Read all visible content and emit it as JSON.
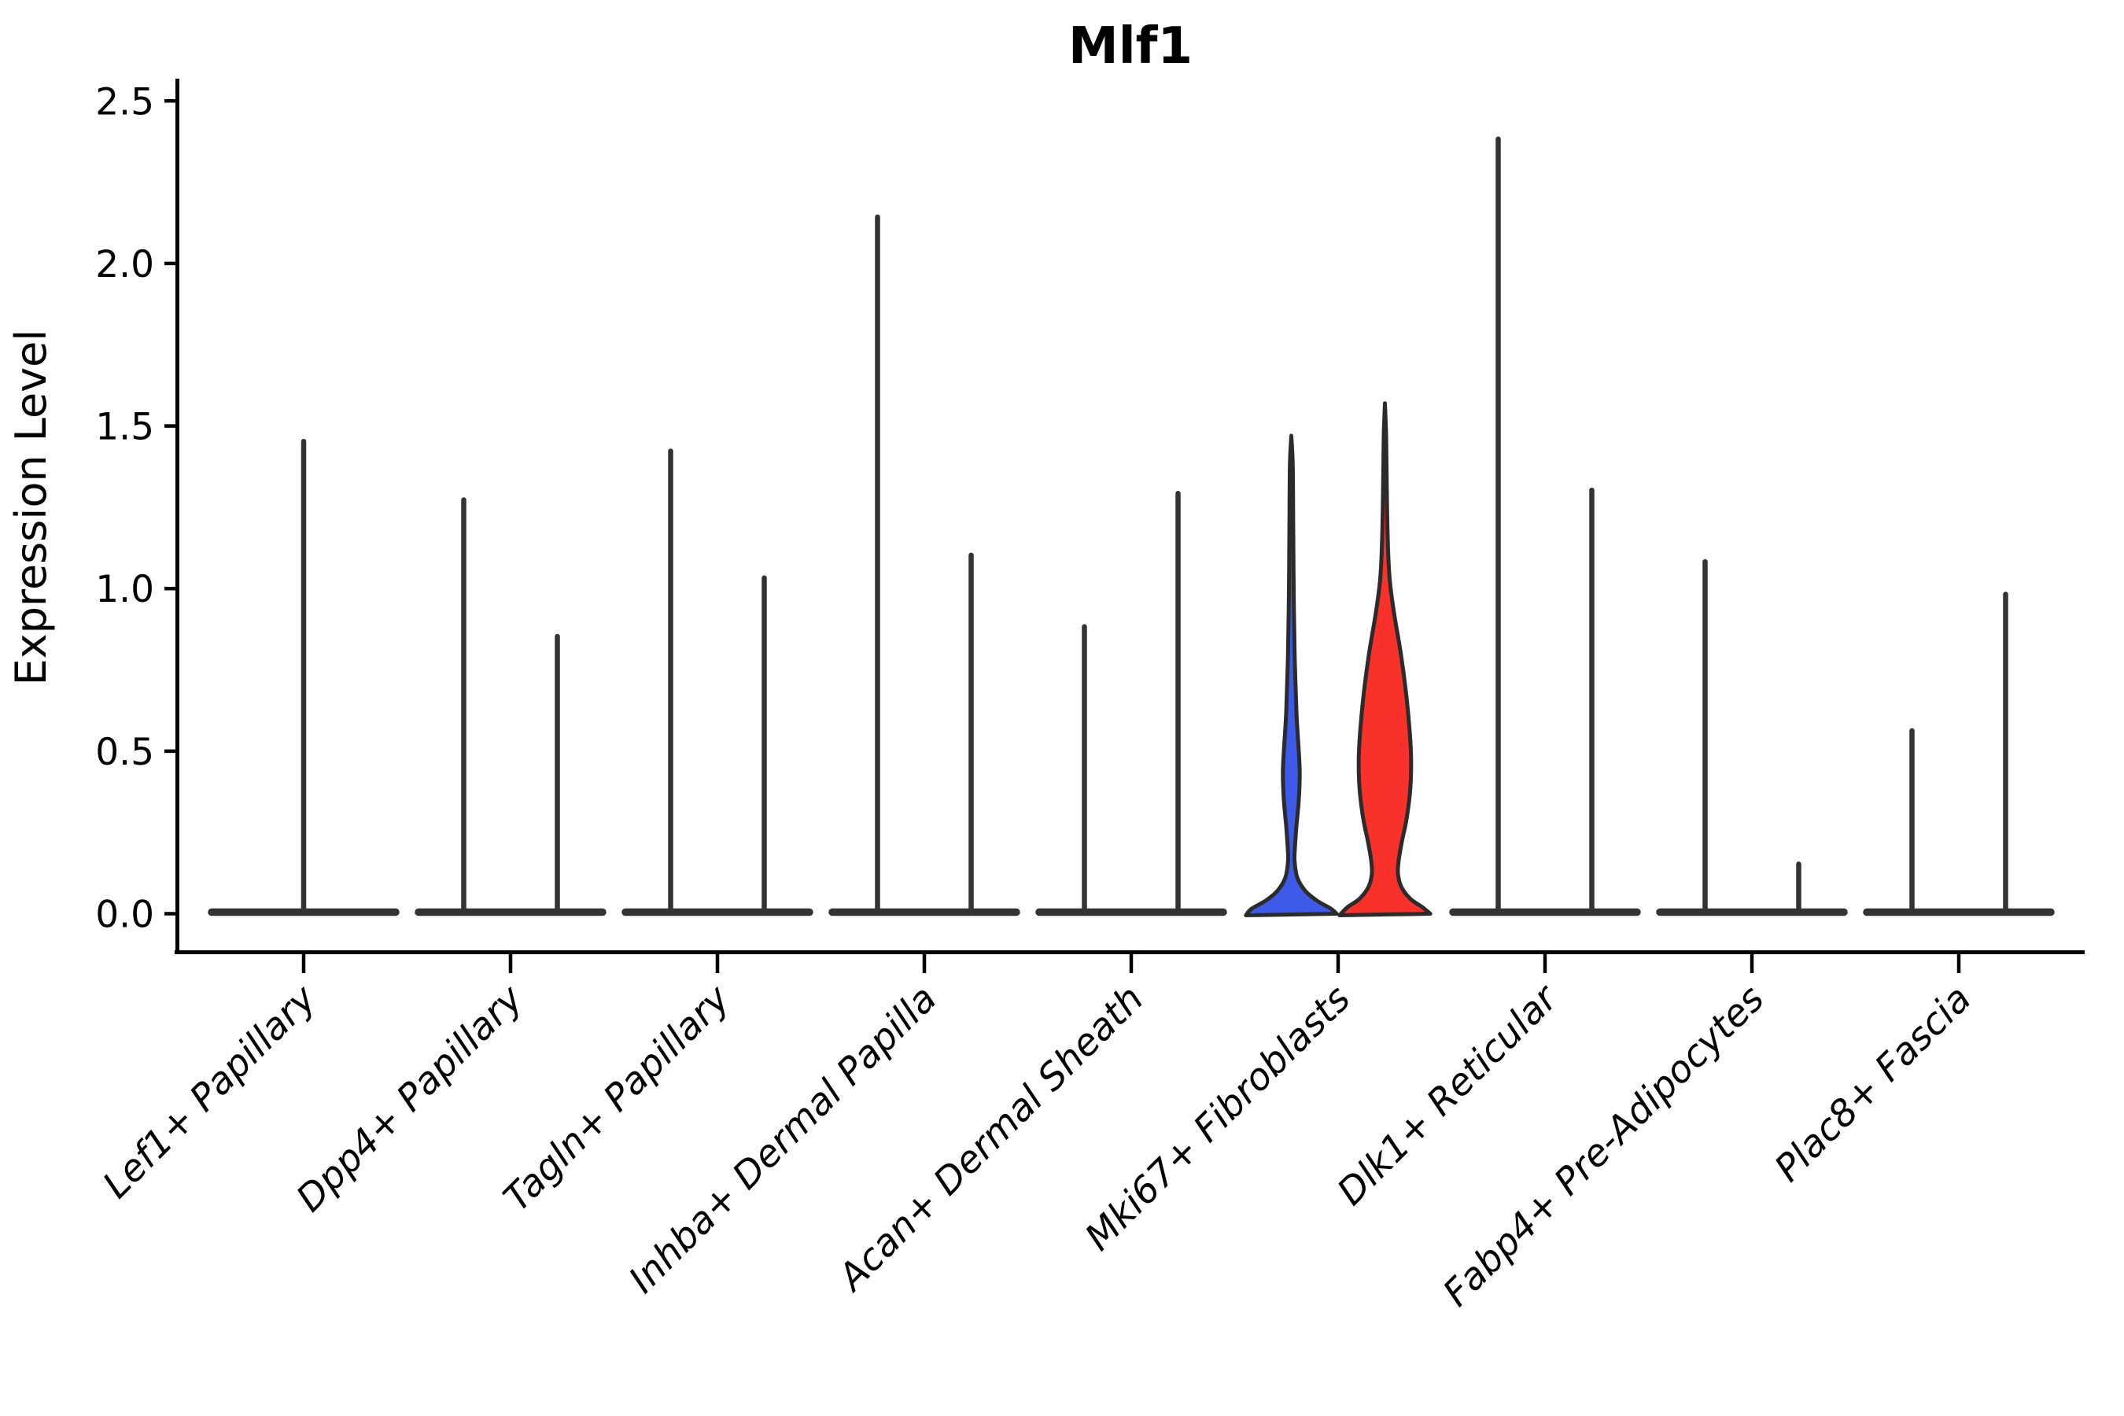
{
  "title": "Mlf1",
  "chart_data": {
    "type": "violin",
    "title": "Mlf1",
    "xlabel": "",
    "ylabel": "Expression Level",
    "yticks": [
      0.0,
      0.5,
      1.0,
      1.5,
      2.0,
      2.5
    ],
    "ylim": [
      -0.12,
      2.57
    ],
    "grid": false,
    "legend": null,
    "xtick_rotation_deg": 45,
    "xtick_italic": true,
    "colors": {
      "violin_line": "#333333",
      "axis": "#000000",
      "blue_fill": "#3D5BE8",
      "red_fill": "#F8312A",
      "violin_outline": "#2B2B2B"
    },
    "categories": [
      {
        "label": "Lef1+ Papillary",
        "violins": [
          {
            "position": "center",
            "max": 1.46,
            "style": "collapsed"
          }
        ]
      },
      {
        "label": "Dpp4+ Papillary",
        "violins": [
          {
            "position": "left",
            "max": 1.28,
            "style": "collapsed"
          },
          {
            "position": "right",
            "max": 0.86,
            "style": "collapsed"
          }
        ]
      },
      {
        "label": "Tagln+ Papillary",
        "violins": [
          {
            "position": "left",
            "max": 1.43,
            "style": "collapsed"
          },
          {
            "position": "right",
            "max": 1.04,
            "style": "collapsed"
          }
        ]
      },
      {
        "label": "Inhba+ Dermal Papilla",
        "violins": [
          {
            "position": "left",
            "max": 2.15,
            "style": "collapsed"
          },
          {
            "position": "right",
            "max": 1.11,
            "style": "collapsed"
          }
        ]
      },
      {
        "label": "Acan+ Dermal Sheath",
        "violins": [
          {
            "position": "left",
            "max": 0.89,
            "style": "collapsed"
          },
          {
            "position": "right",
            "max": 1.3,
            "style": "collapsed"
          }
        ]
      },
      {
        "label": "Mki67+ Fibroblasts",
        "violins": [
          {
            "position": "left",
            "max": 1.47,
            "style": "filled",
            "fill": "#3D5BE8",
            "profile": [
              [
                1.47,
                0
              ],
              [
                1.38,
                0.03
              ],
              [
                1.2,
                0.04
              ],
              [
                1.0,
                0.05
              ],
              [
                0.8,
                0.07
              ],
              [
                0.62,
                0.11
              ],
              [
                0.5,
                0.16
              ],
              [
                0.43,
                0.18
              ],
              [
                0.35,
                0.16
              ],
              [
                0.27,
                0.11
              ],
              [
                0.2,
                0.075
              ],
              [
                0.16,
                0.07
              ],
              [
                0.11,
                0.13
              ],
              [
                0.07,
                0.3
              ],
              [
                0.04,
                0.55
              ],
              [
                0.015,
                0.85
              ],
              [
                0,
                0.97
              ]
            ]
          },
          {
            "position": "right",
            "max": 1.57,
            "style": "filled",
            "fill": "#F8312A",
            "profile": [
              [
                1.57,
                0
              ],
              [
                1.47,
                0.025
              ],
              [
                1.3,
                0.04
              ],
              [
                1.15,
                0.06
              ],
              [
                1.03,
                0.1
              ],
              [
                0.92,
                0.2
              ],
              [
                0.8,
                0.34
              ],
              [
                0.68,
                0.45
              ],
              [
                0.56,
                0.53
              ],
              [
                0.47,
                0.56
              ],
              [
                0.38,
                0.54
              ],
              [
                0.29,
                0.46
              ],
              [
                0.22,
                0.36
              ],
              [
                0.16,
                0.29
              ],
              [
                0.12,
                0.28
              ],
              [
                0.08,
                0.36
              ],
              [
                0.045,
                0.55
              ],
              [
                0.02,
                0.8
              ],
              [
                0,
                0.97
              ]
            ]
          }
        ]
      },
      {
        "label": "Dlk1+ Reticular",
        "violins": [
          {
            "position": "left",
            "max": 2.39,
            "style": "collapsed"
          },
          {
            "position": "right",
            "max": 1.31,
            "style": "collapsed"
          }
        ]
      },
      {
        "label": "Fabp4+ Pre-Adipocytes",
        "violins": [
          {
            "position": "left",
            "max": 1.09,
            "style": "collapsed"
          },
          {
            "position": "right",
            "max": 0.16,
            "style": "collapsed"
          }
        ]
      },
      {
        "label": "Plac8+ Fascia",
        "violins": [
          {
            "position": "left",
            "max": 0.57,
            "style": "collapsed"
          },
          {
            "position": "right",
            "max": 0.99,
            "style": "collapsed"
          }
        ]
      }
    ]
  }
}
